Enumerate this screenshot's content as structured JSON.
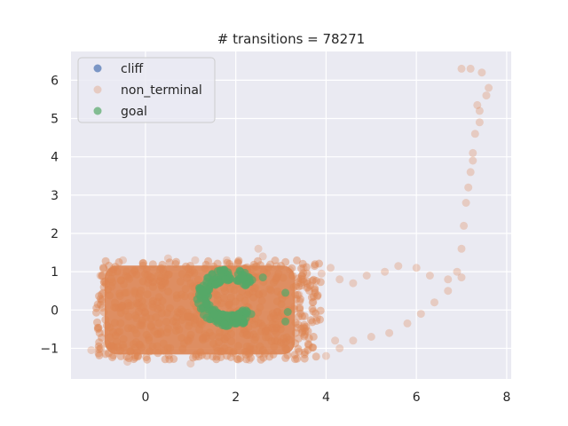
{
  "chart_data": {
    "type": "scatter",
    "title": "# transitions = 78271",
    "xlabel": "",
    "ylabel": "",
    "xlim": [
      -1.65,
      8.1
    ],
    "ylim": [
      -1.8,
      6.75
    ],
    "xticks": [
      0,
      2,
      4,
      6,
      8
    ],
    "yticks": [
      -1,
      0,
      1,
      2,
      3,
      4,
      5,
      6
    ],
    "xtick_labels": [
      "0",
      "2",
      "4",
      "6",
      "8"
    ],
    "ytick_labels": [
      "−1",
      "0",
      "1",
      "2",
      "3",
      "4",
      "5",
      "6"
    ],
    "grid": true,
    "legend_position": "top-left",
    "background": "#eaeaf2",
    "series": [
      {
        "name": "cliff",
        "color": "#4c72b0",
        "points": []
      },
      {
        "name": "non_terminal",
        "color": "#dd8452",
        "dense_region": {
          "x": [
            -1.1,
            3.9
          ],
          "y": [
            -1.3,
            1.3
          ]
        },
        "points": [
          [
            3.2,
            1.05
          ],
          [
            3.5,
            1.1
          ],
          [
            3.9,
            0.95
          ],
          [
            4.1,
            1.1
          ],
          [
            4.3,
            0.8
          ],
          [
            4.6,
            0.7
          ],
          [
            4.9,
            0.9
          ],
          [
            5.3,
            1.0
          ],
          [
            5.6,
            1.15
          ],
          [
            6.0,
            1.1
          ],
          [
            6.3,
            0.9
          ],
          [
            6.7,
            0.8
          ],
          [
            6.9,
            1.0
          ],
          [
            7.0,
            1.6
          ],
          [
            7.05,
            2.2
          ],
          [
            7.1,
            2.8
          ],
          [
            7.15,
            3.2
          ],
          [
            7.2,
            3.6
          ],
          [
            7.25,
            4.1
          ],
          [
            7.3,
            4.6
          ],
          [
            7.4,
            5.2
          ],
          [
            7.55,
            5.6
          ],
          [
            7.6,
            5.8
          ],
          [
            7.45,
            6.2
          ],
          [
            7.2,
            6.3
          ],
          [
            7.0,
            6.3
          ],
          [
            7.35,
            5.35
          ],
          [
            7.4,
            4.9
          ],
          [
            7.25,
            3.9
          ],
          [
            4.2,
            -0.8
          ],
          [
            4.6,
            -0.8
          ],
          [
            5.0,
            -0.7
          ],
          [
            5.4,
            -0.6
          ],
          [
            5.8,
            -0.35
          ],
          [
            6.1,
            -0.1
          ],
          [
            6.4,
            0.2
          ],
          [
            6.7,
            0.5
          ],
          [
            7.0,
            0.85
          ],
          [
            4.0,
            -1.2
          ],
          [
            4.3,
            -1.0
          ],
          [
            3.8,
            -0.2
          ],
          [
            3.7,
            0.2
          ],
          [
            3.6,
            0.6
          ],
          [
            3.4,
            0.4
          ],
          [
            3.3,
            0.1
          ],
          [
            2.6,
            1.4
          ],
          [
            2.5,
            1.6
          ],
          [
            2.9,
            1.15
          ],
          [
            -0.9,
            -0.6
          ],
          [
            -1.2,
            -1.05
          ],
          [
            -1.0,
            0.9
          ],
          [
            -0.5,
            1.3
          ],
          [
            0.5,
            1.35
          ],
          [
            1.1,
            1.3
          ],
          [
            1.8,
            1.3
          ],
          [
            2.3,
            -1.3
          ],
          [
            1.0,
            -1.4
          ],
          [
            -0.4,
            -1.35
          ]
        ]
      },
      {
        "name": "goal",
        "color": "#55a868",
        "ring": {
          "cx": 1.85,
          "cy": 0.32,
          "r_outer": 0.75,
          "r_inner": 0.45
        },
        "points": [
          [
            2.6,
            0.85
          ],
          [
            3.1,
            0.45
          ],
          [
            3.15,
            -0.05
          ],
          [
            3.1,
            -0.3
          ]
        ]
      }
    ]
  }
}
